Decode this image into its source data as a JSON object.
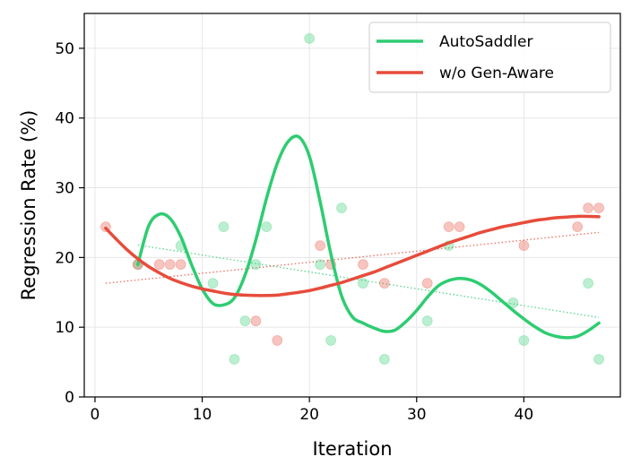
{
  "chart_data": {
    "type": "scatter",
    "title": "",
    "xlabel": "Iteration",
    "ylabel": "Regression Rate (%)",
    "xlim": [
      -1,
      49
    ],
    "ylim": [
      0,
      55
    ],
    "xticks": [
      0,
      10,
      20,
      30,
      40
    ],
    "yticks": [
      0,
      10,
      20,
      30,
      40,
      50
    ],
    "grid": true,
    "legend_position": "top-right",
    "series": [
      {
        "name": "AutoSaddler",
        "color": "#2ecc71",
        "points": [
          [
            4,
            19
          ],
          [
            8,
            21.7
          ],
          [
            11,
            16.3
          ],
          [
            12,
            24.4
          ],
          [
            13,
            5.4
          ],
          [
            14,
            10.9
          ],
          [
            15,
            19
          ],
          [
            16,
            24.4
          ],
          [
            20,
            51.4
          ],
          [
            21,
            19
          ],
          [
            22,
            8.1
          ],
          [
            23,
            27.1
          ],
          [
            25,
            16.3
          ],
          [
            27,
            5.4
          ],
          [
            31,
            10.9
          ],
          [
            33,
            21.7
          ],
          [
            39,
            13.5
          ],
          [
            40,
            8.1
          ],
          [
            46,
            16.3
          ],
          [
            47,
            5.4
          ]
        ],
        "smooth_curve": [
          [
            4,
            19
          ],
          [
            5,
            24.5
          ],
          [
            6,
            26.2
          ],
          [
            7,
            25.6
          ],
          [
            8,
            23
          ],
          [
            9,
            19
          ],
          [
            10,
            15.5
          ],
          [
            11,
            13.4
          ],
          [
            12,
            13.2
          ],
          [
            13,
            14.2
          ],
          [
            14,
            17.5
          ],
          [
            15,
            22.5
          ],
          [
            16,
            28.5
          ],
          [
            17,
            33.5
          ],
          [
            18,
            36.6
          ],
          [
            19,
            37.3
          ],
          [
            20,
            34.5
          ],
          [
            21,
            28
          ],
          [
            22,
            20.5
          ],
          [
            23,
            14.5
          ],
          [
            24,
            11.5
          ],
          [
            25,
            10.6
          ],
          [
            26,
            9.9
          ],
          [
            27,
            9.4
          ],
          [
            28,
            9.6
          ],
          [
            29,
            10.8
          ],
          [
            30,
            12.4
          ],
          [
            31,
            14.3
          ],
          [
            32,
            15.9
          ],
          [
            33,
            16.7
          ],
          [
            34,
            17
          ],
          [
            35,
            16.8
          ],
          [
            36,
            16.1
          ],
          [
            37,
            15
          ],
          [
            38,
            13.7
          ],
          [
            39,
            12.4
          ],
          [
            40,
            11.2
          ],
          [
            41,
            10.1
          ],
          [
            42,
            9.2
          ],
          [
            43,
            8.7
          ],
          [
            44,
            8.5
          ],
          [
            45,
            8.7
          ],
          [
            46,
            9.5
          ],
          [
            47,
            10.6
          ]
        ],
        "trend": [
          [
            4,
            21.8
          ],
          [
            47,
            11.4
          ]
        ]
      },
      {
        "name": "w/o Gen-Aware",
        "color": "#e74c3c",
        "points": [
          [
            1,
            24.4
          ],
          [
            4,
            19
          ],
          [
            6,
            19
          ],
          [
            7,
            19
          ],
          [
            8,
            19
          ],
          [
            15,
            10.9
          ],
          [
            17,
            8.1
          ],
          [
            21,
            21.7
          ],
          [
            22,
            19
          ],
          [
            25,
            19
          ],
          [
            27,
            16.3
          ],
          [
            31,
            16.3
          ],
          [
            33,
            24.4
          ],
          [
            34,
            24.4
          ],
          [
            40,
            21.7
          ],
          [
            45,
            24.4
          ],
          [
            46,
            27.1
          ],
          [
            47,
            27.1
          ]
        ],
        "smooth_curve": [
          [
            1,
            24.2
          ],
          [
            2,
            22.6
          ],
          [
            3,
            21.1
          ],
          [
            4,
            19.8
          ],
          [
            5,
            18.7
          ],
          [
            6,
            17.8
          ],
          [
            7,
            17
          ],
          [
            8,
            16.4
          ],
          [
            9,
            15.9
          ],
          [
            10,
            15.5
          ],
          [
            11,
            15.2
          ],
          [
            12,
            14.9
          ],
          [
            13,
            14.7
          ],
          [
            14,
            14.6
          ],
          [
            15,
            14.55
          ],
          [
            16,
            14.55
          ],
          [
            17,
            14.6
          ],
          [
            18,
            14.8
          ],
          [
            19,
            15
          ],
          [
            20,
            15.25
          ],
          [
            21,
            15.6
          ],
          [
            22,
            16
          ],
          [
            23,
            16.4
          ],
          [
            24,
            16.9
          ],
          [
            25,
            17.4
          ],
          [
            26,
            17.9
          ],
          [
            27,
            18.5
          ],
          [
            28,
            19.1
          ],
          [
            29,
            19.7
          ],
          [
            30,
            20.3
          ],
          [
            31,
            20.9
          ],
          [
            32,
            21.5
          ],
          [
            33,
            22.1
          ],
          [
            34,
            22.6
          ],
          [
            35,
            23.1
          ],
          [
            36,
            23.6
          ],
          [
            37,
            24
          ],
          [
            38,
            24.4
          ],
          [
            39,
            24.7
          ],
          [
            40,
            25
          ],
          [
            41,
            25.3
          ],
          [
            42,
            25.5
          ],
          [
            43,
            25.7
          ],
          [
            44,
            25.8
          ],
          [
            45,
            25.9
          ],
          [
            46,
            25.9
          ],
          [
            47,
            25.85
          ]
        ],
        "trend": [
          [
            1,
            16.3
          ],
          [
            47,
            23.6
          ]
        ]
      }
    ]
  }
}
